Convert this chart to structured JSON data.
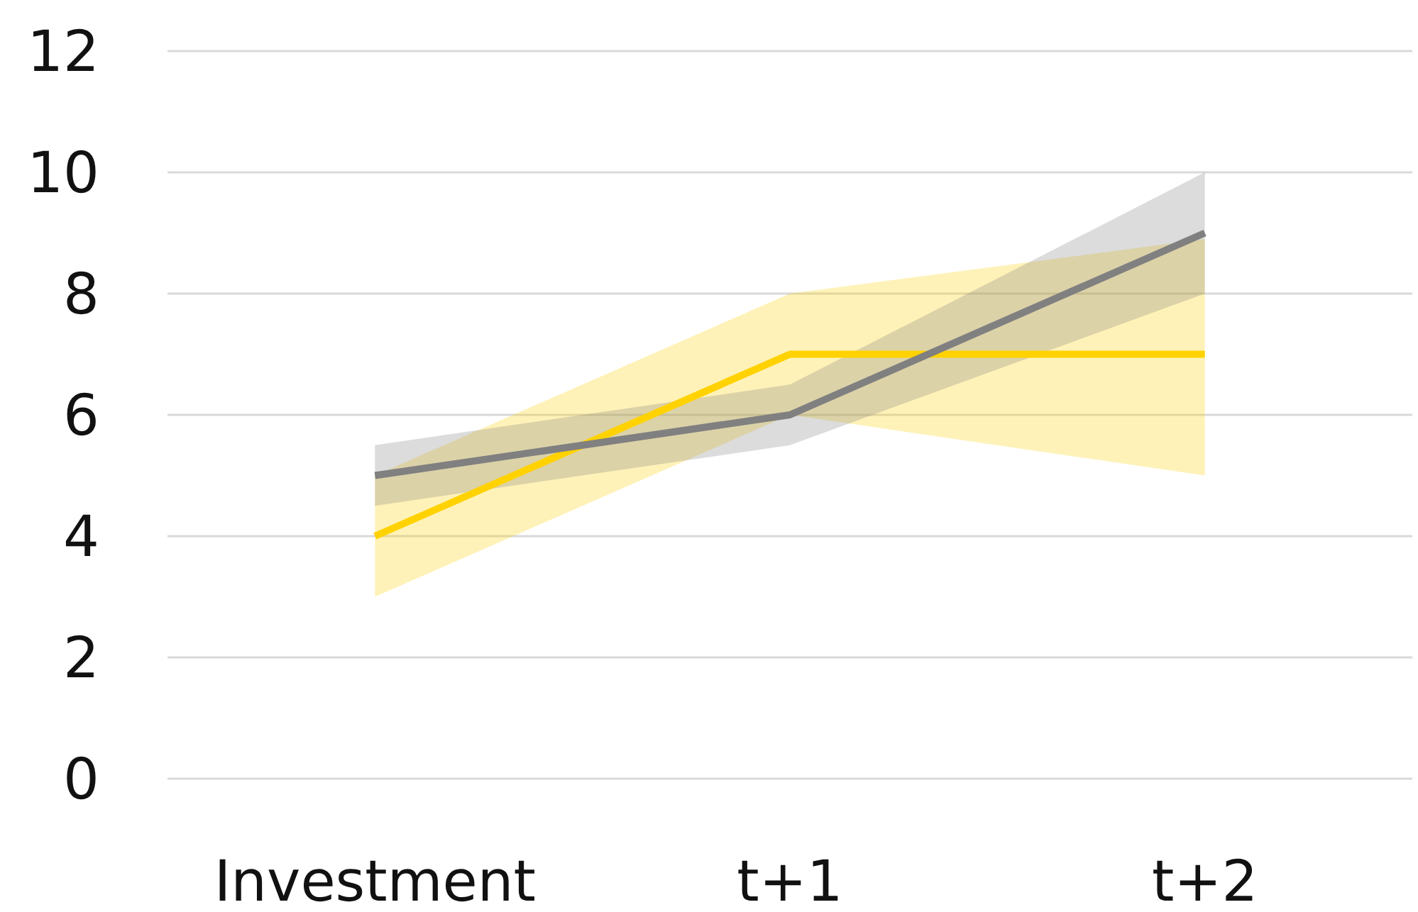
{
  "chart_data": {
    "type": "line",
    "categories": [
      "Investment",
      "t+1",
      "t+2"
    ],
    "series": [
      {
        "color": "#ffd200",
        "values": [
          4,
          7,
          7
        ],
        "lower": [
          3,
          6,
          5
        ],
        "upper": [
          5,
          8,
          8.9
        ]
      },
      {
        "color": "#808080",
        "values": [
          5,
          6,
          9
        ],
        "lower": [
          4.5,
          5.5,
          8
        ],
        "upper": [
          5.5,
          6.5,
          10
        ]
      }
    ],
    "ylim": [
      0,
      12
    ],
    "yticks": [
      0,
      2,
      4,
      6,
      8,
      10,
      12
    ],
    "grid": "y",
    "marker": "none",
    "line_style": "solid"
  }
}
